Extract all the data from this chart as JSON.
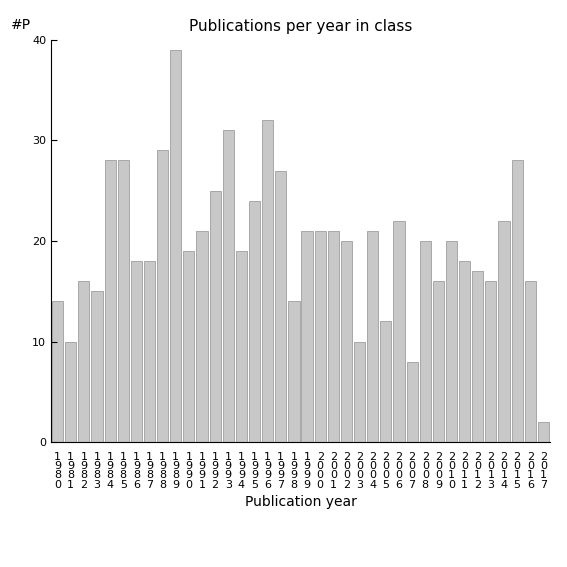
{
  "title": "Publications per year in class",
  "xlabel": "Publication year",
  "ylabel": "#P",
  "years": [
    "1980",
    "1981",
    "1982",
    "1983",
    "1984",
    "1985",
    "1986",
    "1987",
    "1988",
    "1989",
    "1990",
    "1991",
    "1992",
    "1993",
    "1994",
    "1995",
    "1996",
    "1997",
    "1998",
    "1999",
    "2000",
    "2001",
    "2002",
    "2003",
    "2004",
    "2005",
    "2006",
    "2007",
    "2008",
    "2009",
    "2010",
    "2011",
    "2012",
    "2013",
    "2014",
    "2015",
    "2016",
    "2017"
  ],
  "values": [
    14,
    10,
    16,
    15,
    28,
    28,
    18,
    18,
    29,
    39,
    19,
    21,
    25,
    31,
    19,
    24,
    32,
    27,
    14,
    21,
    21,
    21,
    20,
    10,
    21,
    12,
    22,
    8,
    20,
    16,
    20,
    18,
    17,
    16,
    22,
    28,
    16,
    2
  ],
  "bar_color": "#c8c8c8",
  "bar_edge_color": "#909090",
  "ylim": [
    0,
    40
  ],
  "yticks": [
    0,
    10,
    20,
    30,
    40
  ],
  "background_color": "#ffffff",
  "title_fontsize": 11,
  "axis_label_fontsize": 10,
  "tick_fontsize": 8
}
